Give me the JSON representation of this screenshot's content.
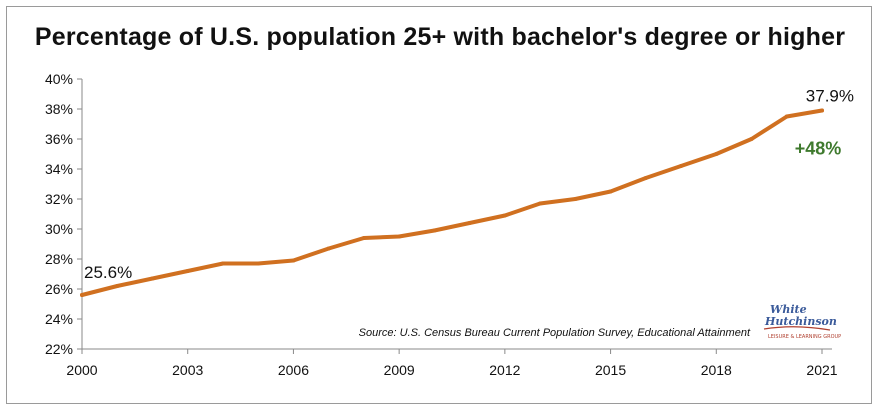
{
  "chart_data": {
    "type": "line",
    "title": "Percentage of U.S. population 25+ with bachelor's degree or higher",
    "x": [
      2000,
      2001,
      2002,
      2003,
      2004,
      2005,
      2006,
      2007,
      2008,
      2009,
      2010,
      2011,
      2012,
      2013,
      2014,
      2015,
      2016,
      2017,
      2018,
      2019,
      2020,
      2021
    ],
    "series": [
      {
        "values": [
          25.6,
          26.2,
          26.7,
          27.2,
          27.7,
          27.7,
          27.9,
          28.7,
          29.4,
          29.5,
          29.9,
          30.4,
          30.9,
          31.7,
          32.0,
          32.5,
          33.4,
          34.2,
          35.0,
          36.0,
          37.5,
          37.9
        ],
        "color": "#d07020"
      }
    ],
    "x_ticks": [
      "2000",
      "2003",
      "2006",
      "2009",
      "2012",
      "2015",
      "2018",
      "2021"
    ],
    "y_ticks": [
      "22%",
      "24%",
      "26%",
      "28%",
      "30%",
      "32%",
      "34%",
      "36%",
      "38%",
      "40%"
    ],
    "ylim": [
      22,
      40
    ],
    "xlim": [
      2000,
      2021
    ],
    "grid": false,
    "annotations": {
      "start_label": "25.6%",
      "end_label": "37.9%",
      "change_label": "+48%",
      "change_color": "#3f7a2e",
      "source": "Source: U.S. Census Bureau Current Population Survey, Educational Attainment"
    },
    "logo": {
      "line1": "White",
      "line2": "Hutchinson",
      "tagline": "LEISURE & LEARNING GROUP"
    }
  }
}
